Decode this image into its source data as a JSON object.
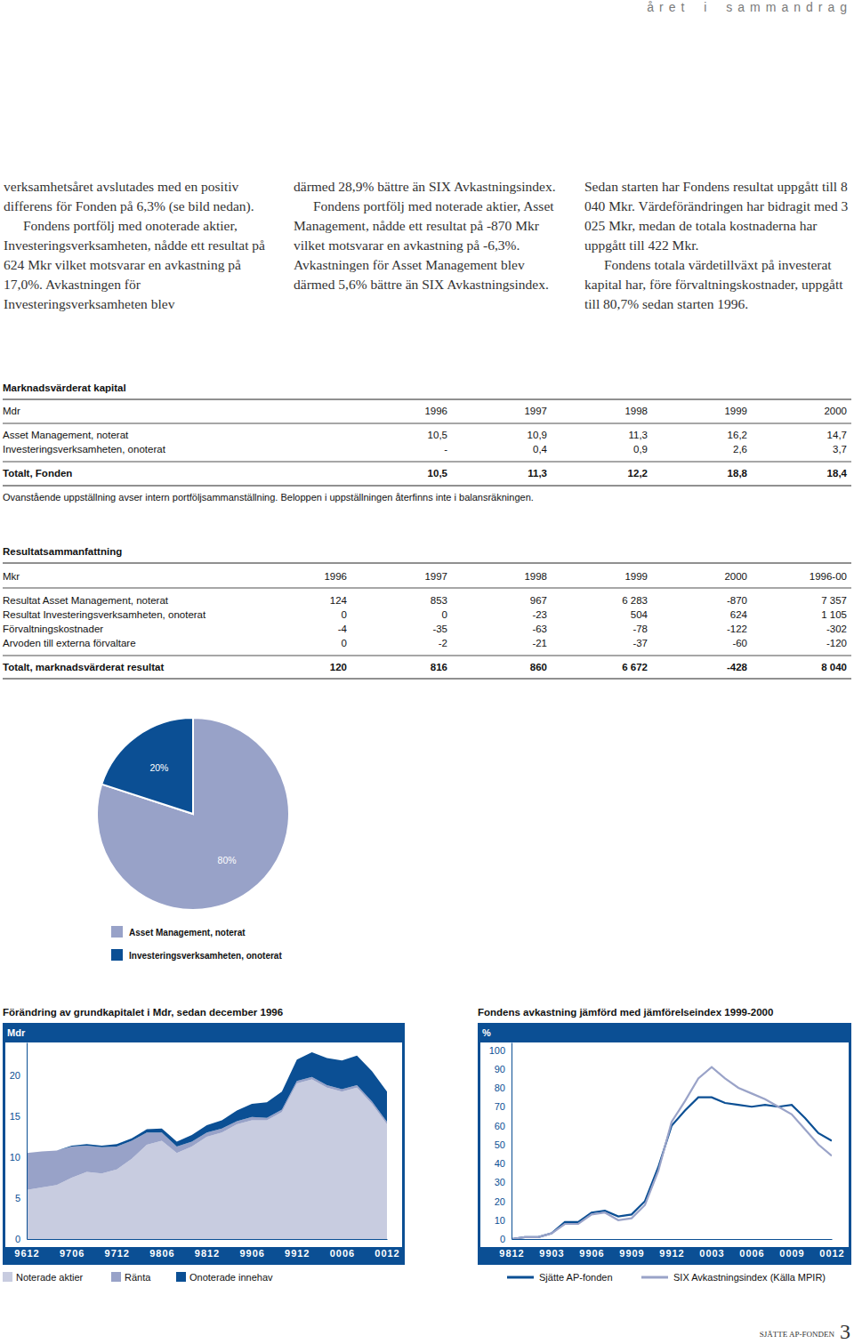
{
  "header": {
    "section": "året i sammandrag"
  },
  "text_columns": [
    [
      "verksamhetsåret avslutades med en positiv differens för Fonden på 6,3% (se bild nedan).",
      "Fondens portfölj med onoterade aktier, Investeringsverksamheten, nådde ett resultat på 624 Mkr vilket motsvarar en avkastning på 17,0%. Avkastningen för Investeringsverksamheten blev"
    ],
    [
      "därmed 28,9% bättre än SIX Avkastningsindex.",
      "Fondens portfölj med noterade aktier, Asset Management, nådde ett resultat på -870 Mkr vilket motsvarar en avkastning på -6,3%. Avkastningen för Asset Management blev därmed 5,6% bättre än SIX Avkastningsindex."
    ],
    [
      "Sedan starten har Fondens resultat uppgått till 8 040 Mkr. Värdeförändringen har bidragit med 3 025 Mkr, medan de totala kostnaderna har uppgått till 422 Mkr.",
      "Fondens totala värdetillväxt på investerat kapital har, före förvaltningskostnader, uppgått till 80,7% sedan starten 1996."
    ]
  ],
  "tables": [
    {
      "title": "Marknadsvärderat kapital",
      "header": [
        "Mdr",
        "1996",
        "1997",
        "1998",
        "1999",
        "2000"
      ],
      "rows": [
        [
          "Asset Management, noterat",
          "10,5",
          "10,9",
          "11,3",
          "16,2",
          "14,7"
        ],
        [
          "Investeringsverksamheten, onoterat",
          "-",
          "0,4",
          "0,9",
          "2,6",
          "3,7"
        ]
      ],
      "total": [
        "Totalt, Fonden",
        "10,5",
        "11,3",
        "12,2",
        "18,8",
        "18,4"
      ],
      "note": "Ovanstående uppställning avser intern portföljsammanställning. Beloppen i uppställningen återfinns inte i balansräkningen."
    },
    {
      "title": "Resultatsammanfattning",
      "header": [
        "Mkr",
        "1996",
        "1997",
        "1998",
        "1999",
        "2000",
        "1996-00"
      ],
      "rows": [
        [
          "Resultat Asset Management, noterat",
          "124",
          "853",
          "967",
          "6 283",
          "-870",
          "7 357"
        ],
        [
          "Resultat Investeringsverksamheten, onoterat",
          "0",
          "0",
          "-23",
          "504",
          "624",
          "1 105"
        ],
        [
          "Förvaltningskostnader",
          "-4",
          "-35",
          "-63",
          "-78",
          "-122",
          "-302"
        ],
        [
          "Arvoden till externa förvaltare",
          "0",
          "-2",
          "-21",
          "-37",
          "-60",
          "-120"
        ]
      ],
      "total": [
        "Totalt, marknadsvärderat resultat",
        "120",
        "816",
        "860",
        "6 672",
        "-428",
        "8 040"
      ]
    }
  ],
  "chart_data": [
    {
      "type": "pie",
      "categories": [
        "Asset Management, noterat",
        "Investeringsverksamheten, onoterat"
      ],
      "values": [
        80,
        20
      ],
      "value_labels": [
        "80%",
        "20%"
      ],
      "colors": [
        "#98a2c8",
        "#0b4f94"
      ],
      "data_labels": true,
      "legend": "bottom"
    },
    {
      "type": "area",
      "stacked": true,
      "title": "Förändring av grundkapitalet i Mdr, sedan december 1996",
      "ylabel": "Mdr",
      "categories": [
        "9612",
        null,
        null,
        "9706",
        null,
        null,
        "9712",
        null,
        null,
        "9806",
        null,
        null,
        "9812",
        null,
        null,
        "9906",
        null,
        null,
        "9912",
        null,
        null,
        "0006",
        null,
        null,
        "0012"
      ],
      "series": [
        {
          "name": "Noterade aktier",
          "color": "#c8cce0",
          "values": [
            6.0,
            6.3,
            6.6,
            7.5,
            8.2,
            8.0,
            8.5,
            9.8,
            11.5,
            12.0,
            10.5,
            11.3,
            12.5,
            13.0,
            14.0,
            14.5,
            14.5,
            15.5,
            19.0,
            19.5,
            18.5,
            18.0,
            18.5,
            16.5,
            14.0
          ]
        },
        {
          "name": "Ränta",
          "color": "#98a2c8",
          "values": [
            4.5,
            4.4,
            4.2,
            3.8,
            3.2,
            3.2,
            2.8,
            2.2,
            1.5,
            1.0,
            0.8,
            0.6,
            0.5,
            0.5,
            0.4,
            0.4,
            0.3,
            0.3,
            0.3,
            0.3,
            0.3,
            0.3,
            0.3,
            0.3,
            0.3
          ]
        },
        {
          "name": "Onoterade innehav",
          "color": "#0b4f94",
          "values": [
            0,
            0,
            0,
            0.1,
            0.2,
            0.2,
            0.3,
            0.3,
            0.4,
            0.5,
            0.6,
            0.8,
            0.9,
            1.0,
            1.3,
            1.6,
            1.9,
            2.2,
            2.6,
            3.0,
            3.3,
            3.5,
            3.6,
            3.7,
            3.7
          ]
        }
      ],
      "ylim": [
        0,
        24
      ],
      "yticks": [
        0,
        5,
        10,
        15,
        20
      ],
      "legend": "bottom"
    },
    {
      "type": "line",
      "title": "Fondens avkastning jämförd med jämförelseindex 1999-2000",
      "ylabel": "%",
      "categories": [
        "9812",
        null,
        null,
        "9903",
        null,
        null,
        "9906",
        null,
        null,
        "9909",
        null,
        null,
        "9912",
        null,
        null,
        "0003",
        null,
        null,
        "0006",
        null,
        null,
        "0009",
        null,
        null,
        "0012"
      ],
      "series": [
        {
          "name": "Sjätte AP-fonden",
          "color": "#0b4f94",
          "values": [
            0,
            1,
            1,
            3,
            9,
            9,
            14,
            15,
            12,
            13,
            20,
            38,
            60,
            68,
            75,
            75,
            72,
            71,
            70,
            71,
            70,
            71,
            64,
            56,
            52
          ]
        },
        {
          "name": "SIX Avkastningsindex (Källa MPIR)",
          "color": "#9aa3c8",
          "values": [
            0,
            1,
            1,
            3,
            8,
            8,
            13,
            14,
            10,
            11,
            18,
            36,
            62,
            73,
            85,
            91,
            85,
            80,
            77,
            74,
            70,
            66,
            58,
            50,
            44
          ]
        }
      ],
      "ylim": [
        0,
        104
      ],
      "yticks": [
        0,
        10,
        20,
        30,
        40,
        50,
        60,
        70,
        80,
        90,
        100
      ],
      "legend": "bottom"
    }
  ],
  "footer": {
    "publisher": "SJÄTTE AP-FONDEN",
    "page": "3"
  }
}
